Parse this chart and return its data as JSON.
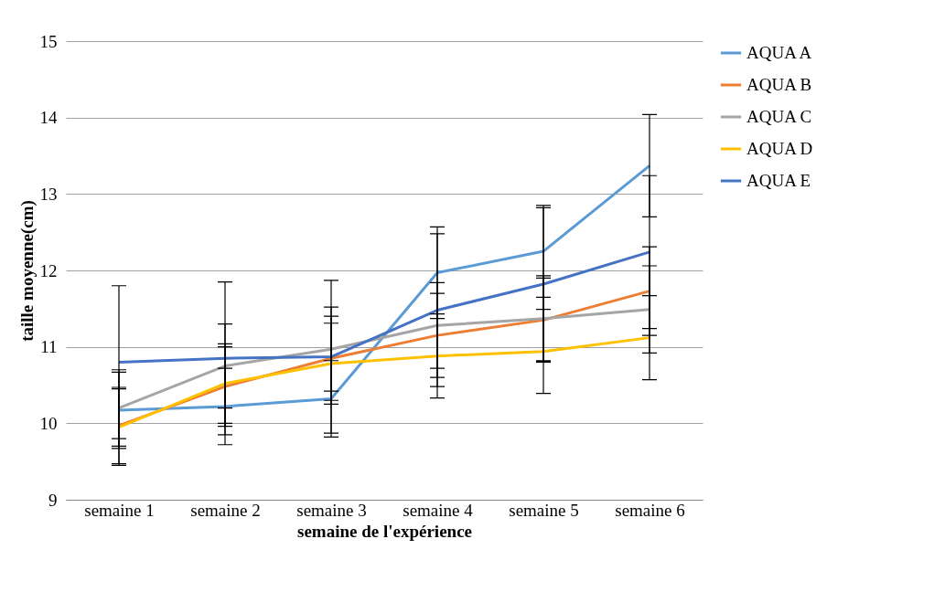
{
  "chart_data": {
    "type": "line",
    "xlabel": "semaine de l'expérience",
    "ylabel": "taille moyenne(cm)",
    "categories": [
      "semaine 1",
      "semaine 2",
      "semaine 3",
      "semaine 4",
      "semaine 5",
      "semaine 6"
    ],
    "series": [
      {
        "name": "AQUA A",
        "color": "#5b9bd5",
        "values": [
          10.17,
          10.22,
          10.32,
          11.97,
          12.25,
          13.37
        ],
        "errors": [
          0.5,
          0.5,
          0.5,
          0.6,
          0.6,
          0.67
        ]
      },
      {
        "name": "AQUA B",
        "color": "#ed7d31",
        "values": [
          9.97,
          10.48,
          10.85,
          11.15,
          11.35,
          11.73
        ],
        "errors": [
          0.5,
          0.52,
          0.55,
          0.55,
          0.55,
          0.58
        ]
      },
      {
        "name": "AQUA C",
        "color": "#a5a5a5",
        "values": [
          10.2,
          10.75,
          10.97,
          11.28,
          11.37,
          11.49
        ],
        "errors": [
          0.5,
          0.55,
          0.55,
          0.56,
          0.56,
          0.57
        ]
      },
      {
        "name": "AQUA D",
        "color": "#ffc000",
        "values": [
          9.95,
          10.52,
          10.78,
          10.88,
          10.94,
          11.12
        ],
        "errors": [
          0.5,
          0.52,
          0.53,
          0.55,
          0.55,
          0.55
        ]
      },
      {
        "name": "AQUA E",
        "color": "#4472c4",
        "values": [
          10.8,
          10.85,
          10.87,
          11.48,
          11.82,
          12.24
        ],
        "errors": [
          1.0,
          1.0,
          1.0,
          1.0,
          1.0,
          1.0
        ]
      }
    ],
    "ylim": [
      9,
      15
    ],
    "yticks": [
      9,
      10,
      11,
      12,
      13,
      14,
      15
    ],
    "grid": "y",
    "legend": "right",
    "marker": "none",
    "line_style": "solid"
  }
}
